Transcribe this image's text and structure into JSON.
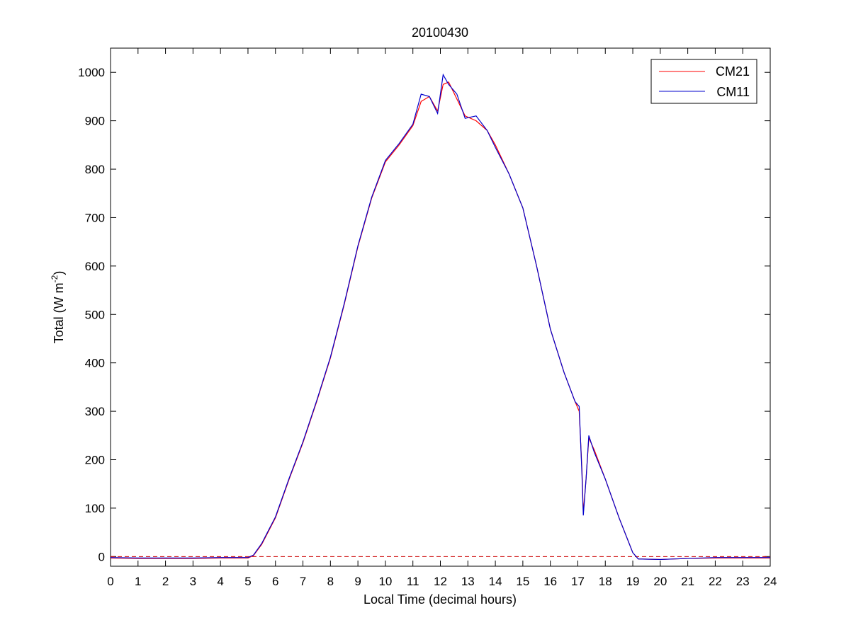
{
  "chart_data": {
    "type": "line",
    "title": "20100430",
    "xlabel": "Local Time (decimal hours)",
    "ylabel": "Total (W m",
    "ylabel_superscript": "-2",
    "ylabel_suffix": ")",
    "xlim": [
      0,
      24
    ],
    "ylim": [
      -20,
      1050
    ],
    "x_ticks": [
      0,
      1,
      2,
      3,
      4,
      5,
      6,
      7,
      8,
      9,
      10,
      11,
      12,
      13,
      14,
      15,
      16,
      17,
      18,
      19,
      20,
      21,
      22,
      23,
      24
    ],
    "y_ticks": [
      0,
      100,
      200,
      300,
      400,
      500,
      600,
      700,
      800,
      900,
      1000
    ],
    "grid": false,
    "legend_position": "top-right",
    "reference_line": {
      "y": 0,
      "style": "dashed",
      "color": "#cc0000"
    },
    "series": [
      {
        "name": "CM21",
        "color": "#ff0000",
        "x": [
          0,
          1,
          2,
          3,
          4,
          4.5,
          5,
          5.2,
          5.5,
          6,
          6.5,
          7,
          7.5,
          8,
          8.5,
          9,
          9.5,
          10,
          10.5,
          11,
          11.3,
          11.6,
          11.9,
          12.1,
          12.3,
          12.6,
          12.9,
          13.3,
          13.7,
          14,
          14.5,
          15,
          15.5,
          16,
          16.5,
          16.9,
          17.05,
          17.15,
          17.2,
          17.3,
          17.4,
          17.6,
          18,
          18.5,
          19,
          19.2,
          20,
          21,
          22,
          23,
          24
        ],
        "y": [
          -3,
          -4,
          -4,
          -4,
          -3,
          -3,
          -3,
          2,
          25,
          80,
          160,
          235,
          320,
          410,
          520,
          640,
          740,
          815,
          850,
          890,
          940,
          950,
          920,
          975,
          980,
          945,
          910,
          900,
          880,
          850,
          790,
          720,
          600,
          470,
          380,
          320,
          300,
          180,
          90,
          160,
          245,
          220,
          160,
          80,
          8,
          -5,
          -6,
          -4,
          -3,
          -3,
          -3
        ]
      },
      {
        "name": "CM11",
        "color": "#0000cc",
        "x": [
          0,
          1,
          2,
          3,
          4,
          4.5,
          5,
          5.2,
          5.5,
          6,
          6.5,
          7,
          7.5,
          8,
          8.5,
          9,
          9.5,
          10,
          10.5,
          11,
          11.3,
          11.6,
          11.9,
          12.1,
          12.3,
          12.6,
          12.9,
          13.3,
          13.7,
          14,
          14.5,
          15,
          15.5,
          16,
          16.5,
          16.9,
          17.05,
          17.15,
          17.2,
          17.3,
          17.4,
          17.6,
          18,
          18.5,
          19,
          19.2,
          20,
          21,
          22,
          23,
          24
        ],
        "y": [
          -2,
          -3,
          -3,
          -3,
          -2,
          -2,
          -2,
          3,
          27,
          82,
          162,
          237,
          322,
          412,
          522,
          642,
          742,
          818,
          853,
          893,
          955,
          950,
          915,
          995,
          975,
          955,
          905,
          910,
          880,
          845,
          790,
          720,
          600,
          470,
          380,
          320,
          310,
          170,
          85,
          160,
          250,
          215,
          160,
          80,
          8,
          -5,
          -6,
          -4,
          -2,
          -2,
          -2
        ]
      }
    ]
  }
}
